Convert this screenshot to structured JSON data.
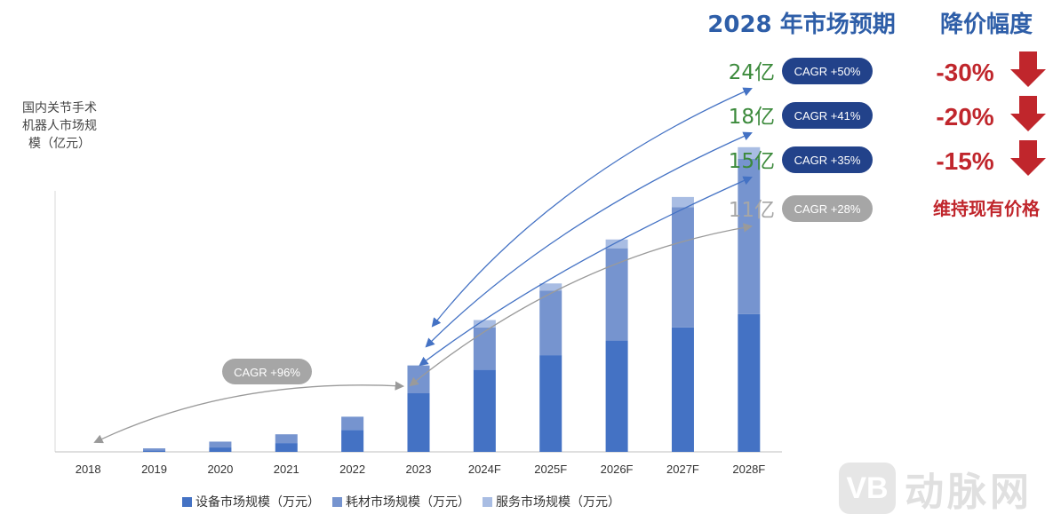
{
  "chart_data": {
    "type": "bar",
    "stacked": true,
    "categories": [
      "2018",
      "2019",
      "2020",
      "2021",
      "2022",
      "2023",
      "2024F",
      "2025F",
      "2026F",
      "2027F",
      "2028F"
    ],
    "series": [
      {
        "name": "设备市场规模（万元）",
        "color": "#4472c4",
        "values": [
          0,
          0.05,
          0.15,
          0.3,
          0.75,
          2.0,
          2.8,
          3.3,
          3.8,
          4.25,
          4.7
        ]
      },
      {
        "name": "耗材市场规模（万元）",
        "color": "#7694cf",
        "values": [
          0,
          0.07,
          0.2,
          0.3,
          0.45,
          0.95,
          1.45,
          2.2,
          3.15,
          4.1,
          5.3
        ]
      },
      {
        "name": "服务市场规模（万元）",
        "color": "#a9bde3",
        "values": [
          0,
          0,
          0,
          0,
          0,
          0,
          0.25,
          0.25,
          0.3,
          0.35,
          0.4
        ]
      }
    ],
    "ylabel": "国内关节手术机器人市场规模（亿元）",
    "ylim": [
      0,
      13
    ],
    "legend": "bottom",
    "annotations": {
      "cagr_history": "CAGR +96%",
      "header_forecast": "2028 年市场预期",
      "header_price": "降价幅度",
      "scenarios": [
        {
          "value": "24亿",
          "cagr": "CAGR +50%",
          "price_cut": "-30%",
          "target": 24
        },
        {
          "value": "18亿",
          "cagr": "CAGR +41%",
          "price_cut": "-20%",
          "target": 18
        },
        {
          "value": "15亿",
          "cagr": "CAGR +35%",
          "price_cut": "-15%",
          "target": 15
        },
        {
          "value": "11亿",
          "cagr": "CAGR +28%",
          "price_cut": "维持现有价格",
          "target": 11
        }
      ]
    }
  },
  "ylabel_lines": [
    "国内关节手术",
    "机器人市场规",
    "模（亿元）"
  ],
  "colors": {
    "value_green": "#3c8a3c",
    "value_gray": "#a6a6a6",
    "pill_blue": "#22428a",
    "pill_gray": "#a6a6a6",
    "red": "#c0262c",
    "header_blue": "#2e5ea8"
  },
  "watermark": {
    "badge": "VB",
    "text": "动脉网"
  }
}
